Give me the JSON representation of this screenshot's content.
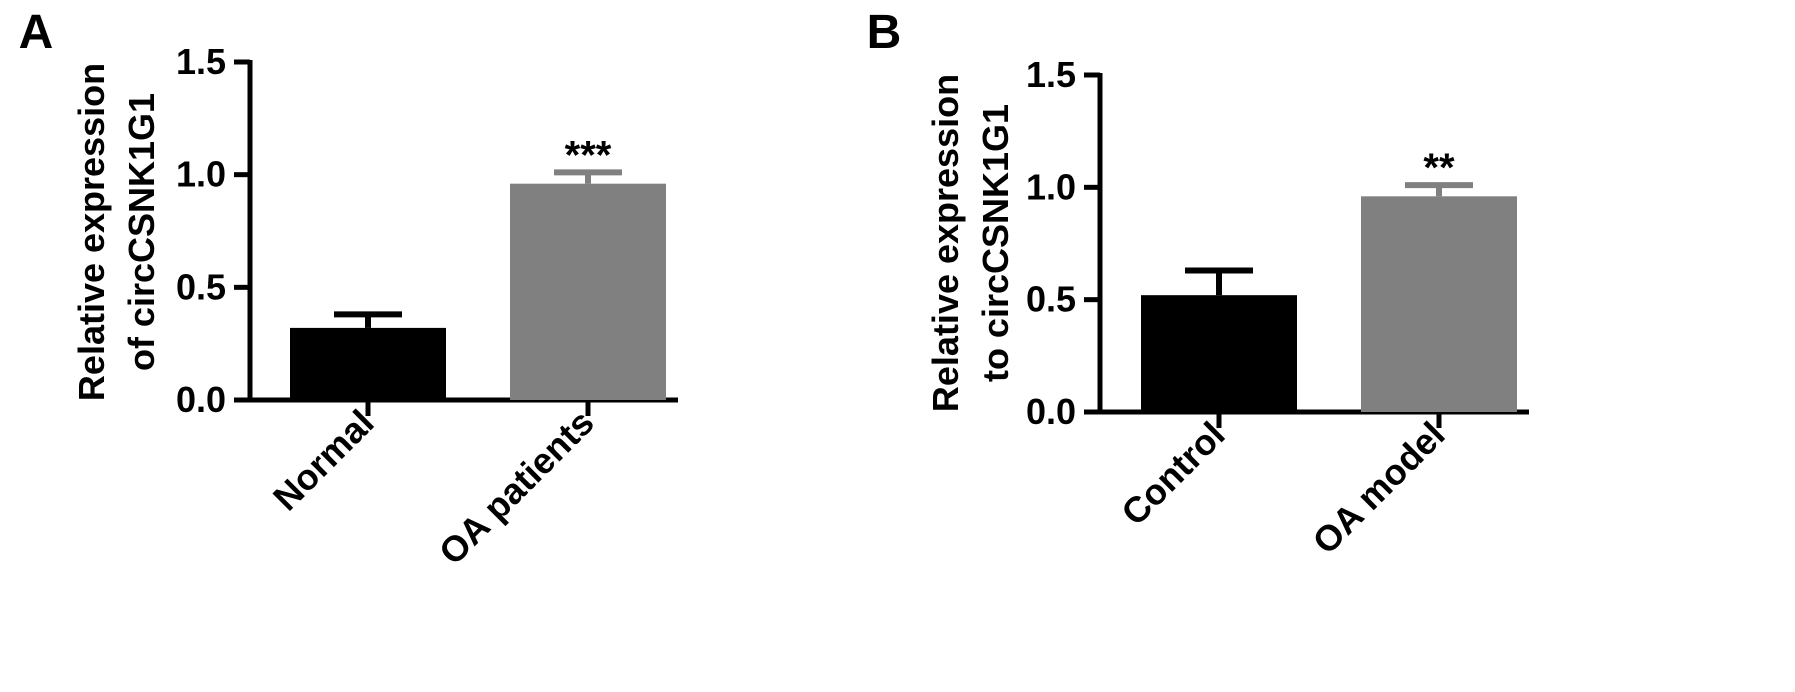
{
  "chart_data": [
    {
      "panel": "A",
      "type": "bar",
      "categories": [
        "Normal",
        "OA patients"
      ],
      "values": [
        0.32,
        0.96
      ],
      "errors": [
        0.06,
        0.05
      ],
      "significance": [
        "",
        "***"
      ],
      "colors": [
        "#000000",
        "#808080"
      ],
      "ylabel_lines": [
        "Relative expression",
        "of circCSNK1G1"
      ],
      "ylim": [
        0,
        1.5
      ],
      "yticks": [
        "0.0",
        "0.5",
        "1.0",
        "1.5"
      ],
      "ytick_values": [
        0,
        0.5,
        1.0,
        1.5
      ],
      "grid": false,
      "legend": "none"
    },
    {
      "panel": "B",
      "type": "bar",
      "categories": [
        "Control",
        "OA model"
      ],
      "values": [
        0.52,
        0.96
      ],
      "errors": [
        0.11,
        0.05
      ],
      "significance": [
        "",
        "**"
      ],
      "colors": [
        "#000000",
        "#808080"
      ],
      "ylabel_lines": [
        "Relative expression",
        "to circCSNK1G1"
      ],
      "ylim": [
        0,
        1.5
      ],
      "yticks": [
        "0.0",
        "0.5",
        "1.0",
        "1.5"
      ],
      "ytick_values": [
        0,
        0.5,
        1.0,
        1.5
      ],
      "grid": false,
      "legend": "none"
    }
  ]
}
